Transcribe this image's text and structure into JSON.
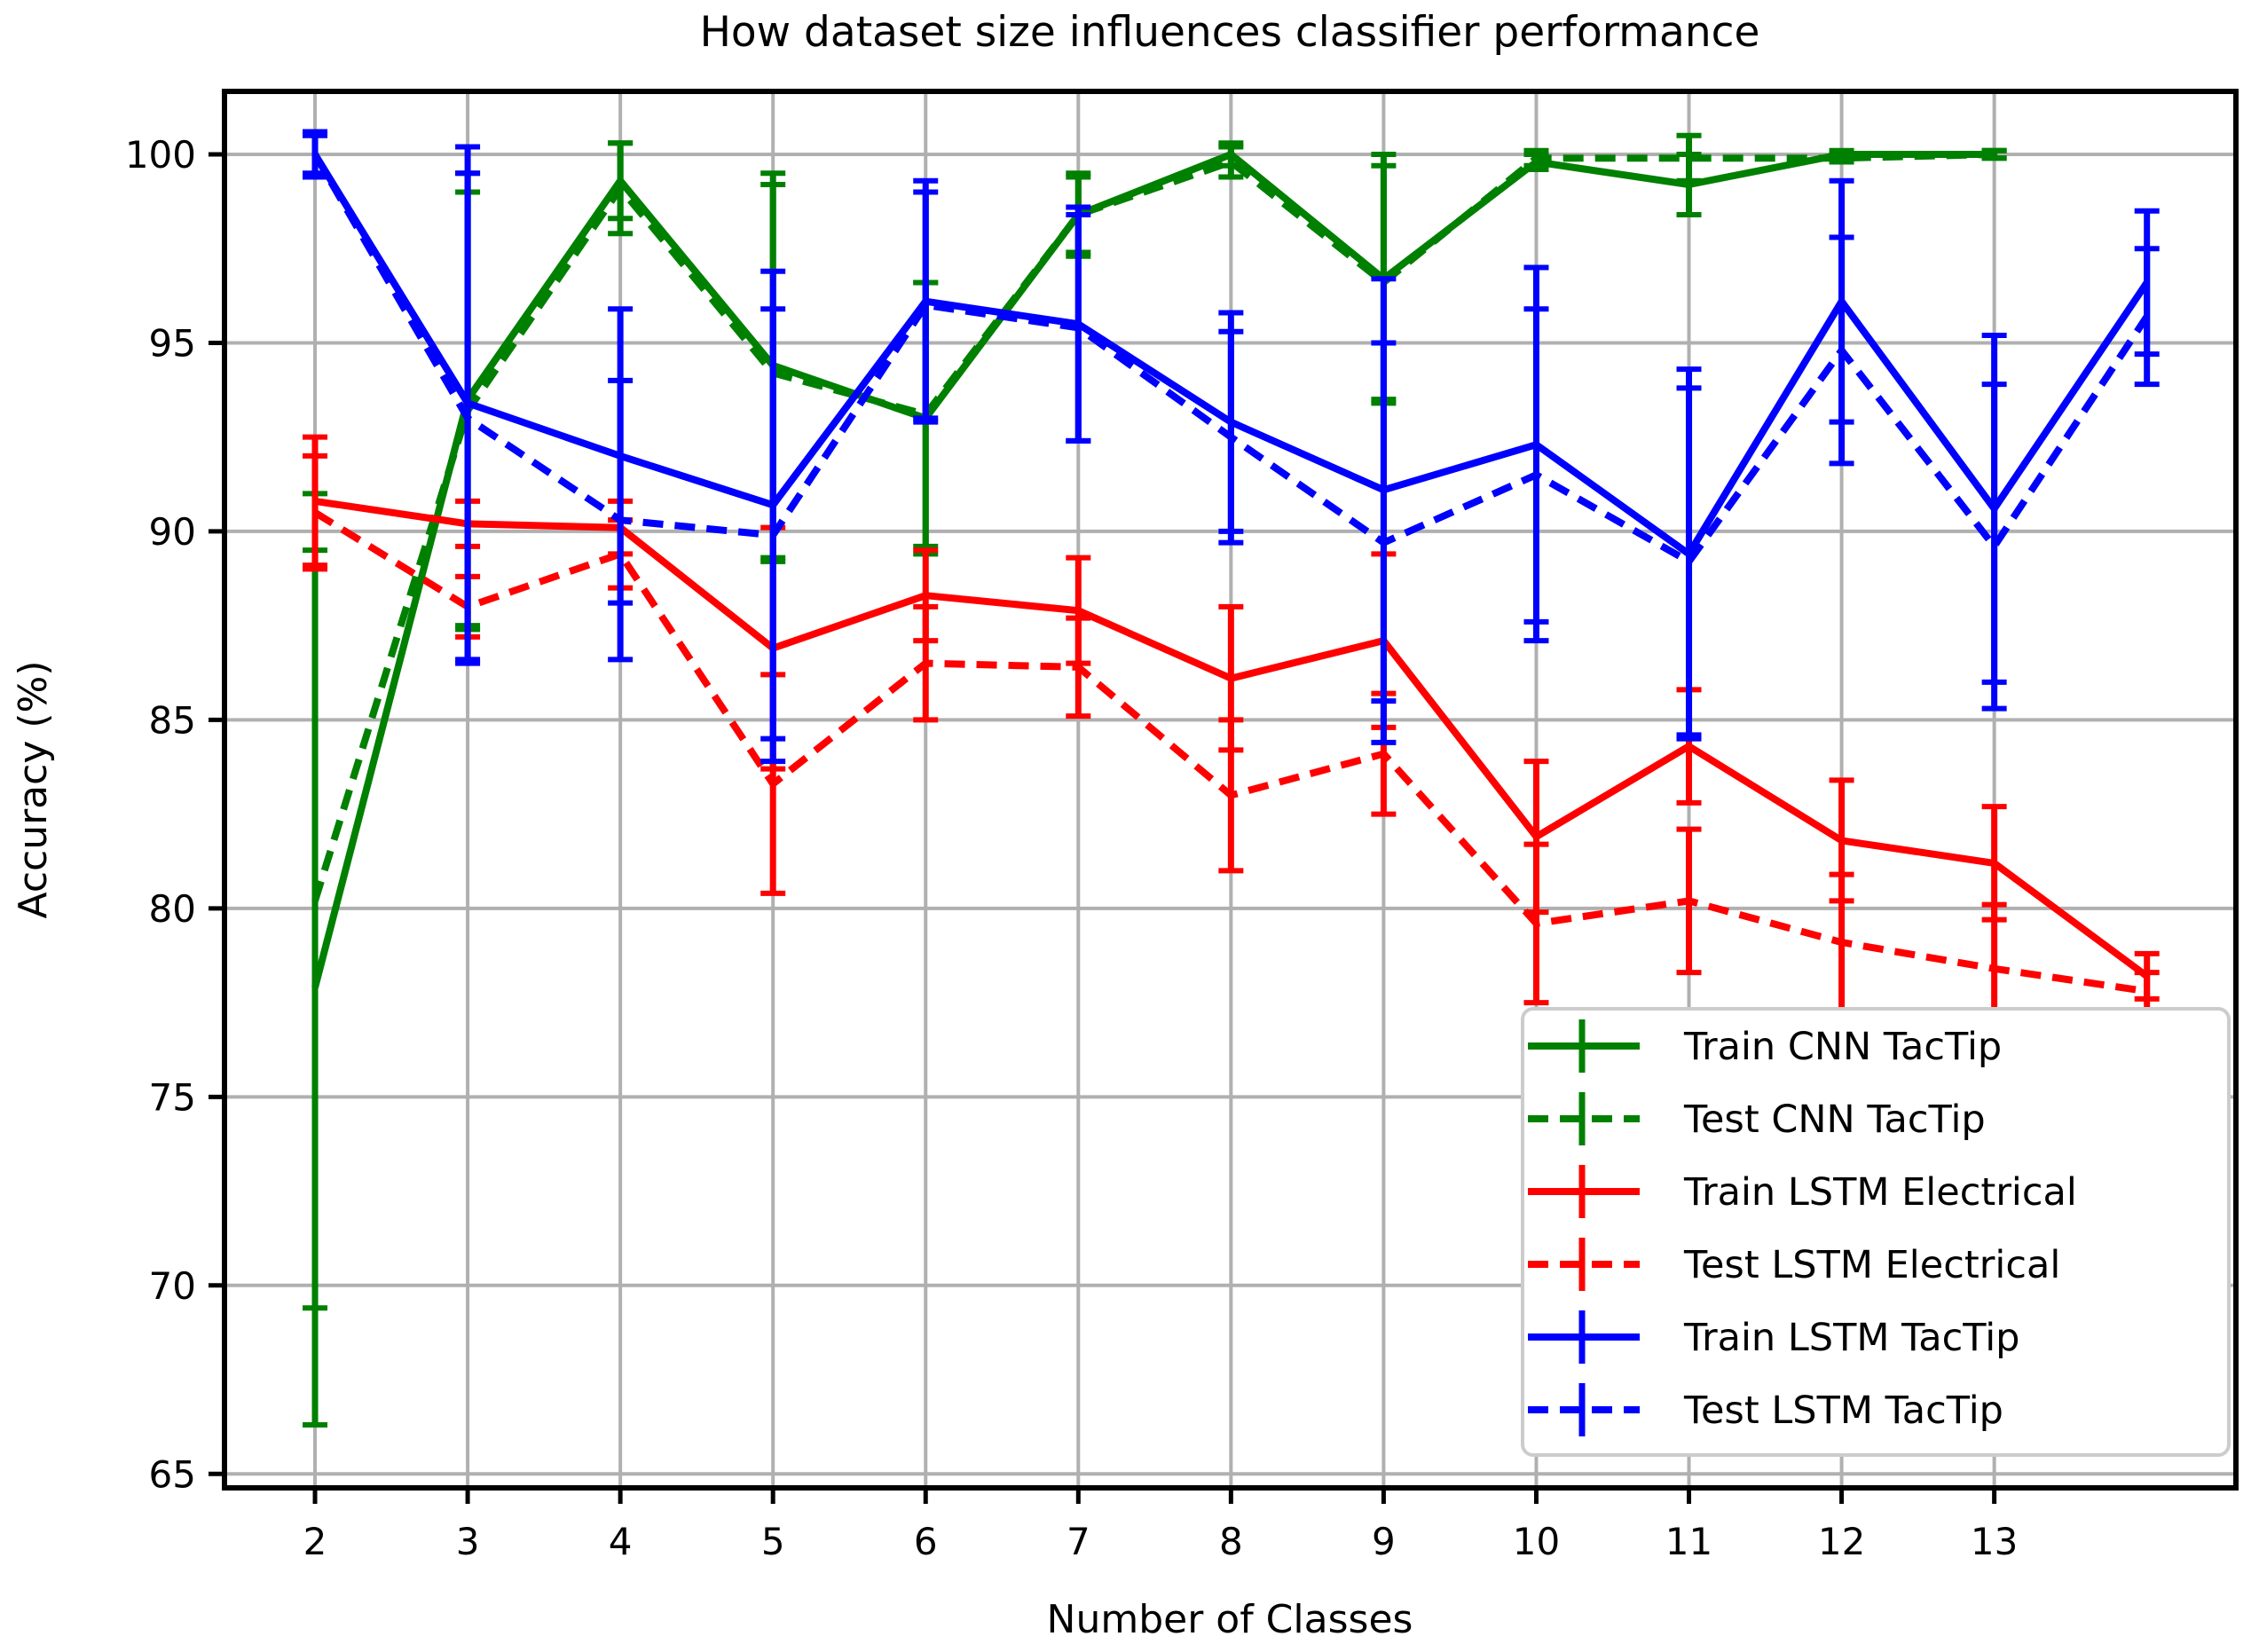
{
  "title": "How dataset size influences classifier performance",
  "xlabel": "Number of Classes",
  "ylabel": "Accuracy (%)",
  "chart_data": {
    "type": "line",
    "x": [
      2,
      3,
      4,
      5,
      6,
      7,
      8,
      9,
      10,
      11,
      12,
      13,
      14
    ],
    "x_tick_labels": [
      "2",
      "3",
      "4",
      "5",
      "6",
      "7",
      "8",
      "9",
      "10",
      "11",
      "12",
      "13"
    ],
    "yticks": [
      65,
      70,
      75,
      80,
      85,
      90,
      95,
      100
    ],
    "xlim": [
      1.407,
      14.583
    ],
    "ylim": [
      64.63,
      101.67
    ],
    "grid": true,
    "grid_color": "#b0b0b0",
    "legend_position": "lower right",
    "series": [
      {
        "name": "Train CNN TacTip",
        "color": "#008000",
        "style": "solid",
        "values": [
          77.9,
          93.5,
          99.3,
          94.4,
          93.0,
          98.4,
          100.0,
          96.7,
          99.8,
          99.2,
          100.0,
          100.0,
          null
        ],
        "err": [
          11.6,
          6.0,
          1.0,
          5.1,
          3.6,
          1.0,
          0.3,
          3.3,
          0.2,
          0.8,
          0.1,
          0.1,
          null
        ]
      },
      {
        "name": "Test CNN TacTip",
        "color": "#008000",
        "style": "dashed",
        "values": [
          80.2,
          93.2,
          99.1,
          94.2,
          93.1,
          98.4,
          99.8,
          96.6,
          99.9,
          99.9,
          99.9,
          100.0,
          null
        ],
        "err": [
          10.8,
          5.8,
          1.2,
          5.0,
          3.5,
          1.1,
          0.4,
          3.1,
          0.2,
          0.6,
          0.1,
          0.1,
          null
        ]
      },
      {
        "name": "Train LSTM Electrical",
        "color": "#ff0000",
        "style": "solid",
        "values": [
          90.8,
          90.2,
          90.1,
          86.9,
          88.3,
          87.9,
          86.1,
          87.1,
          81.9,
          84.3,
          81.8,
          81.2,
          78.2
        ],
        "err": [
          1.7,
          0.6,
          0.7,
          3.2,
          1.2,
          1.4,
          1.9,
          2.3,
          2.0,
          1.5,
          1.6,
          1.5,
          0.6
        ]
      },
      {
        "name": "Test LSTM Electrical",
        "color": "#ff0000",
        "style": "dashed",
        "values": [
          90.5,
          88.0,
          89.4,
          83.3,
          86.5,
          86.4,
          83.0,
          84.1,
          79.6,
          80.2,
          79.1,
          78.4,
          77.8
        ],
        "err": [
          1.5,
          0.8,
          0.9,
          2.9,
          1.5,
          1.3,
          2.0,
          1.6,
          2.1,
          1.9,
          1.8,
          1.7,
          0.5
        ]
      },
      {
        "name": "Train LSTM TacTip",
        "color": "#0000ff",
        "style": "solid",
        "values": [
          100.0,
          93.4,
          92.0,
          90.7,
          96.1,
          95.5,
          92.9,
          91.1,
          92.3,
          89.4,
          96.1,
          90.6,
          96.6
        ],
        "err": [
          0.6,
          6.8,
          3.9,
          6.2,
          3.2,
          3.1,
          2.9,
          5.6,
          4.7,
          4.9,
          3.2,
          4.6,
          1.9
        ]
      },
      {
        "name": "Test LSTM TacTip",
        "color": "#0000ff",
        "style": "dashed",
        "values": [
          100.0,
          93.0,
          90.3,
          89.9,
          96.0,
          95.4,
          92.5,
          89.7,
          91.5,
          89.2,
          94.8,
          89.6,
          95.7
        ],
        "err": [
          0.5,
          6.5,
          3.7,
          6.0,
          3.0,
          3.0,
          2.8,
          5.3,
          4.4,
          4.6,
          3.0,
          4.3,
          1.8
        ]
      }
    ]
  }
}
